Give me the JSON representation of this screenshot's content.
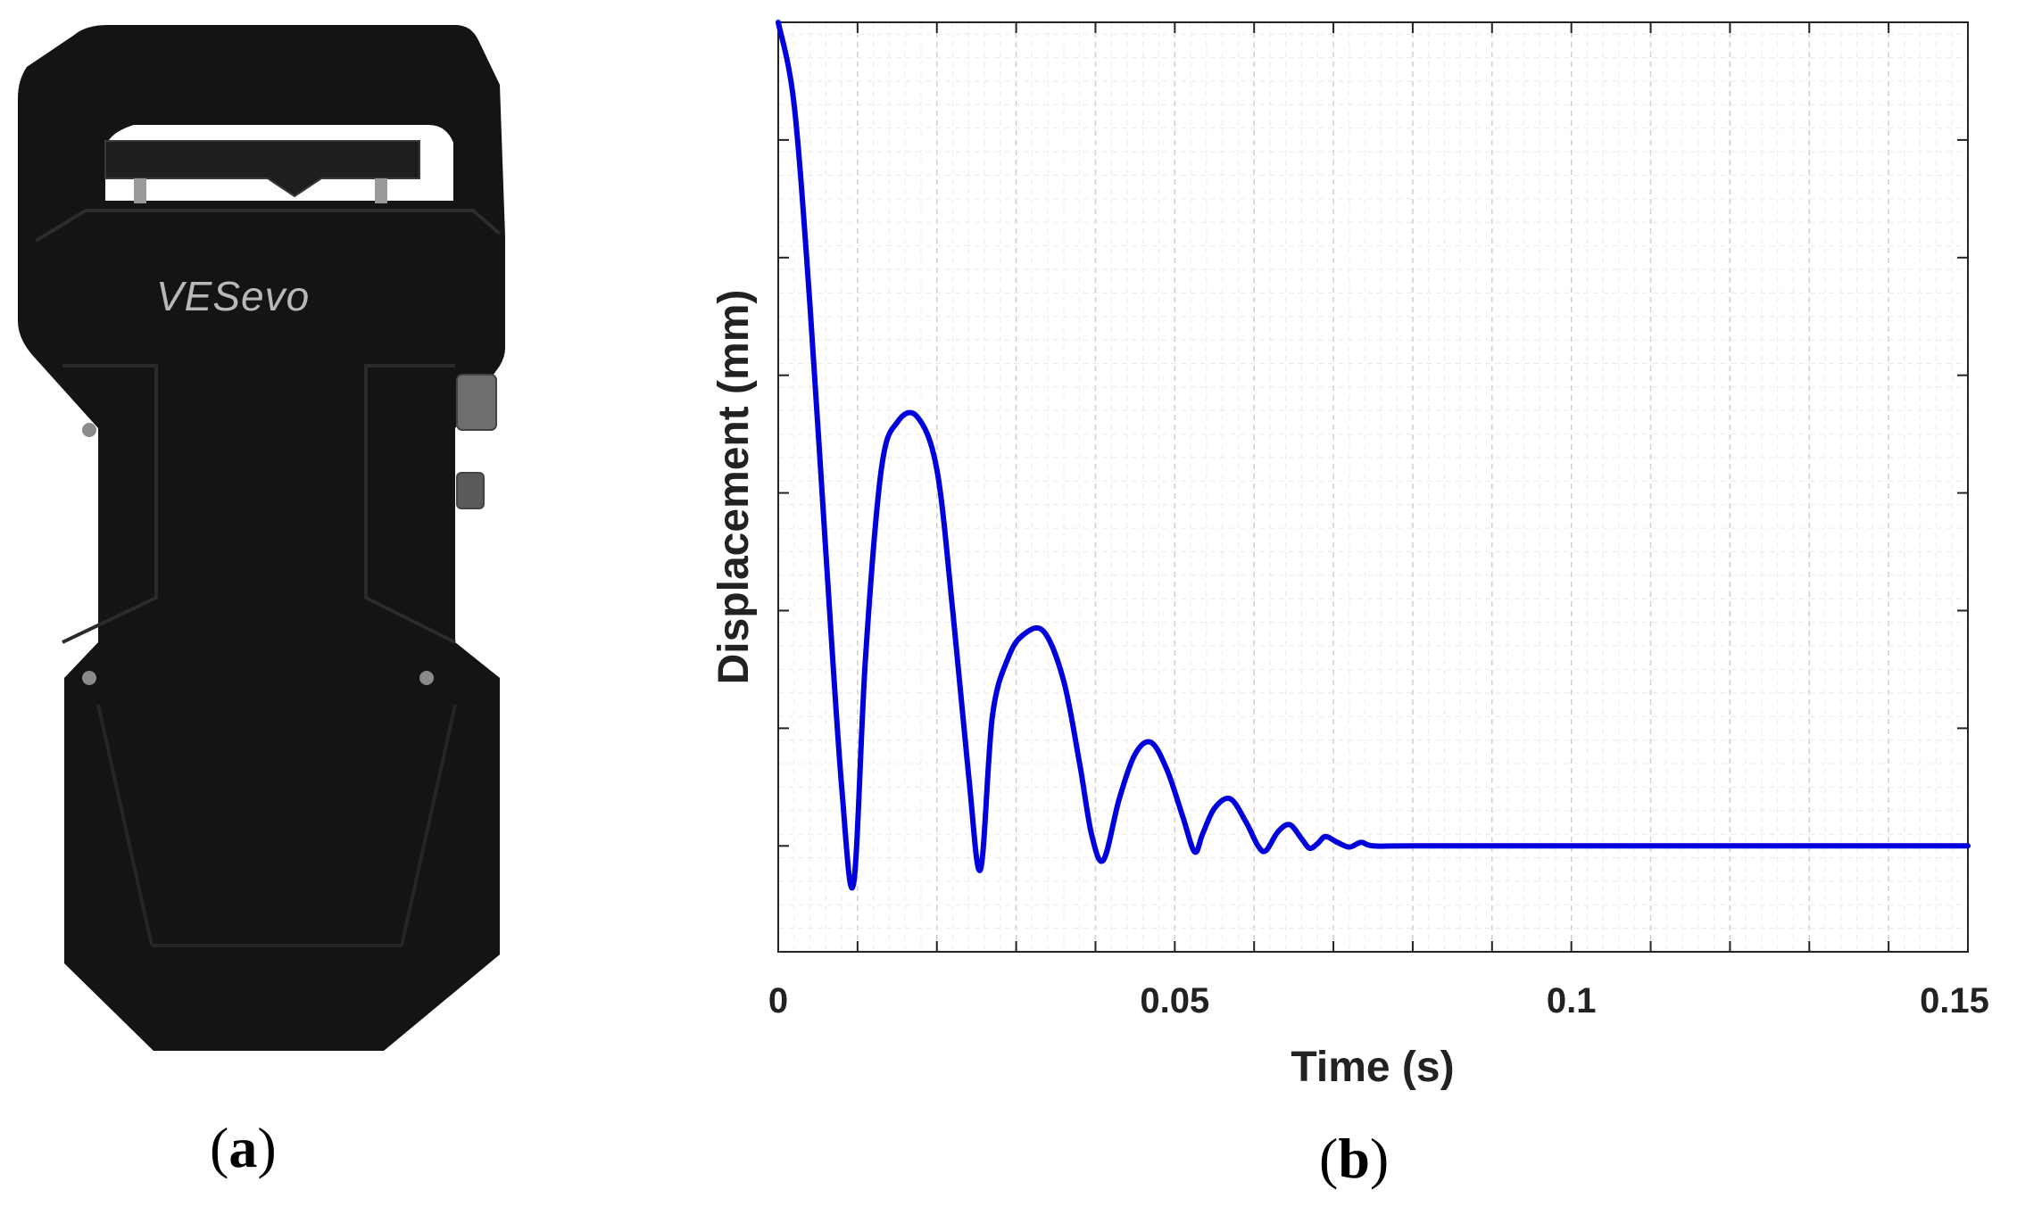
{
  "figure": {
    "panel_a_label": "a",
    "panel_b_label": "b"
  },
  "device": {
    "brand_text": "VESevo",
    "body_color": "#141414"
  },
  "chart_data": {
    "type": "line",
    "xlabel": "Time (s)",
    "ylabel": "Displacement (mm)",
    "xlim": [
      0,
      0.15
    ],
    "x_ticks": [
      0,
      0.05,
      0.1,
      0.15
    ],
    "x_tick_labels": [
      "0",
      "0.05",
      "0.1",
      "0.15"
    ],
    "ylim": [
      -0.9,
      7.0
    ],
    "y_tick_labels_shown": false,
    "grid": true,
    "line_color": "#0000dd",
    "series": [
      {
        "x": [
          0.0,
          0.002,
          0.004,
          0.006,
          0.008,
          0.0095,
          0.011,
          0.013,
          0.015,
          0.0175,
          0.02,
          0.022,
          0.024,
          0.0255,
          0.027,
          0.029,
          0.031,
          0.0335,
          0.036,
          0.038,
          0.0395,
          0.041,
          0.043,
          0.045,
          0.047,
          0.049,
          0.051,
          0.0525,
          0.0535,
          0.055,
          0.057,
          0.059,
          0.0605,
          0.0615,
          0.063,
          0.0645,
          0.066,
          0.067,
          0.068,
          0.069,
          0.0705,
          0.072,
          0.0735,
          0.075,
          0.08,
          0.1,
          0.12,
          0.15
        ],
        "y": [
          7.0,
          6.3,
          4.6,
          2.5,
          0.5,
          -0.32,
          1.6,
          3.2,
          3.6,
          3.65,
          3.2,
          2.0,
          0.6,
          -0.2,
          1.1,
          1.6,
          1.8,
          1.82,
          1.4,
          0.7,
          0.1,
          -0.12,
          0.4,
          0.78,
          0.88,
          0.65,
          0.25,
          -0.05,
          0.1,
          0.32,
          0.4,
          0.2,
          0.0,
          -0.04,
          0.12,
          0.18,
          0.06,
          -0.02,
          0.02,
          0.08,
          0.03,
          -0.01,
          0.03,
          0.0,
          0.0,
          0.0,
          0.0,
          0.0
        ]
      }
    ]
  }
}
